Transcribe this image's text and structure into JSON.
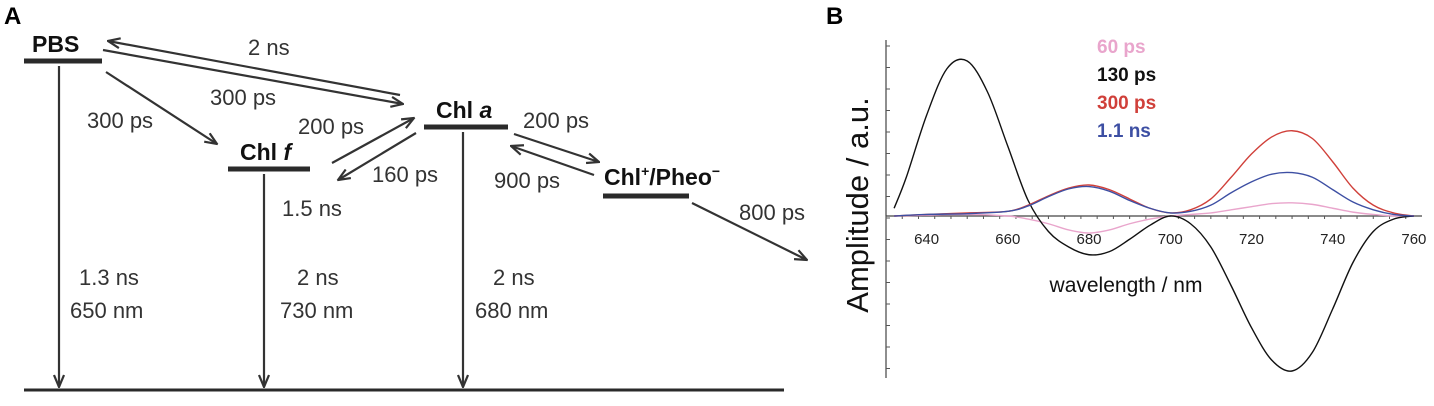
{
  "panel_a": {
    "letter": "A",
    "levels": {
      "pbs": "PBS",
      "chl_f_prefix": "Chl ",
      "chl_f_italic": "f",
      "chl_a_prefix": "Chl ",
      "chl_a_italic": "a",
      "chlp_prefix": "Chl",
      "chlp_plus": "+",
      "chlp_mid": "/Pheo",
      "chlp_minus": "−"
    },
    "transfer_labels": {
      "chla_to_pbs": "2 ns",
      "pbs_to_chla": "300 ps",
      "pbs_to_chlf": "300 ps",
      "chlf_to_chla": "200 ps",
      "chla_to_chlf": "160 ps",
      "chlf_extra": "1.5 ns",
      "chla_to_chlp": "200 ps",
      "chlp_to_chla": "900 ps",
      "chlp_decay": "800 ps"
    },
    "decays": {
      "pbs": [
        "1.3 ns",
        "650 nm"
      ],
      "chl_f": [
        "2 ns",
        "730 nm"
      ],
      "chl_a": [
        "2 ns",
        "680 nm"
      ]
    }
  },
  "panel_b": {
    "letter": "B"
  },
  "chart_data": {
    "type": "line",
    "xlabel": "wavelength / nm",
    "ylabel": "Amplitude / a.u.",
    "xlim": [
      630,
      762
    ],
    "ylim": [
      -1.0,
      1.0
    ],
    "xticks": [
      640,
      660,
      680,
      700,
      720,
      740,
      760
    ],
    "legend_position": "top-center",
    "series": [
      {
        "name": "60 ps",
        "color": "#e9a5cc",
        "x": [
          632,
          640,
          650,
          660,
          665,
          670,
          675,
          680,
          685,
          690,
          695,
          700,
          705,
          710,
          715,
          720,
          725,
          730,
          735,
          740,
          745,
          750,
          755,
          760
        ],
        "y": [
          0.0,
          0.005,
          0.01,
          0.0,
          -0.02,
          -0.05,
          -0.09,
          -0.11,
          -0.09,
          -0.05,
          -0.02,
          0.0,
          0.01,
          0.02,
          0.04,
          0.06,
          0.08,
          0.085,
          0.075,
          0.05,
          0.025,
          0.01,
          0.0,
          0.0
        ]
      },
      {
        "name": "130 ps",
        "color": "#111111",
        "x": [
          632,
          635,
          640,
          645,
          650,
          655,
          660,
          665,
          670,
          675,
          680,
          685,
          690,
          695,
          700,
          705,
          710,
          715,
          720,
          725,
          730,
          735,
          740,
          745,
          750,
          755,
          760
        ],
        "y": [
          0.05,
          0.25,
          0.65,
          0.95,
          1.0,
          0.8,
          0.45,
          0.1,
          -0.1,
          -0.2,
          -0.25,
          -0.23,
          -0.15,
          -0.06,
          0.0,
          -0.05,
          -0.2,
          -0.45,
          -0.72,
          -0.93,
          -1.0,
          -0.88,
          -0.6,
          -0.3,
          -0.1,
          -0.02,
          0.0
        ]
      },
      {
        "name": "300 ps",
        "color": "#d0403a",
        "x": [
          632,
          640,
          650,
          660,
          665,
          670,
          675,
          680,
          685,
          690,
          695,
          700,
          705,
          710,
          715,
          720,
          725,
          730,
          735,
          740,
          745,
          750,
          755,
          760
        ],
        "y": [
          0.0,
          0.01,
          0.02,
          0.03,
          0.07,
          0.13,
          0.18,
          0.2,
          0.17,
          0.11,
          0.05,
          0.02,
          0.04,
          0.11,
          0.25,
          0.4,
          0.51,
          0.55,
          0.5,
          0.35,
          0.18,
          0.07,
          0.02,
          0.0
        ]
      },
      {
        "name": "1.1 ns",
        "color": "#3d4fa3",
        "x": [
          632,
          640,
          650,
          660,
          665,
          670,
          675,
          680,
          685,
          690,
          695,
          700,
          705,
          710,
          715,
          720,
          725,
          730,
          735,
          740,
          745,
          750,
          755,
          760
        ],
        "y": [
          0.0,
          0.01,
          0.015,
          0.03,
          0.065,
          0.125,
          0.175,
          0.19,
          0.16,
          0.1,
          0.05,
          0.02,
          0.03,
          0.07,
          0.15,
          0.22,
          0.27,
          0.28,
          0.25,
          0.17,
          0.09,
          0.04,
          0.01,
          0.0
        ]
      }
    ]
  }
}
